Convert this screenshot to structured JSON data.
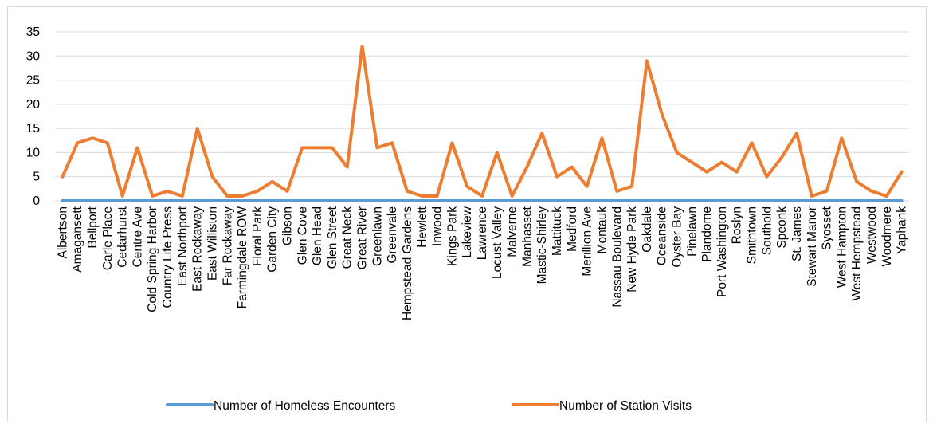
{
  "chart_data": {
    "type": "line",
    "title": "",
    "xlabel": "",
    "ylabel": "",
    "ylim": [
      0,
      35
    ],
    "yticks": [
      0,
      5,
      10,
      15,
      20,
      25,
      30,
      35
    ],
    "grid": true,
    "legend_position": "bottom",
    "categories": [
      "Albertson",
      "Amagansett",
      "Bellport",
      "Carle Place",
      "Cedarhurst",
      "Centre Ave",
      "Cold Spring Harbor",
      "Country Life Press",
      "East Northport",
      "East Rockaway",
      "East Williston",
      "Far Rockaway",
      "Farmingdale ROW",
      "Floral Park",
      "Garden City",
      "Gibson",
      "Glen Cove",
      "Glen Head",
      "Glen Street",
      "Great Neck",
      "Great River",
      "Greenlawn",
      "Greenvale",
      "Hempstead Gardens",
      "Hewlett",
      "Inwood",
      "Kings Park",
      "Lakeview",
      "Lawrence",
      "Locust Valley",
      "Malverne",
      "Manhasset",
      "Mastic-Shirley",
      "Mattituck",
      "Medford",
      "Merillion Ave",
      "Montauk",
      "Nassau Boulevard",
      "New Hyde Park",
      "Oakdale",
      "Oceanside",
      "Oyster Bay",
      "Pinelawn",
      "Plandome",
      "Port Washington",
      "Roslyn",
      "Smithtown",
      "Southold",
      "Speonk",
      "St. James",
      "Stewart Manor",
      "Syosset",
      "West Hampton",
      "West Hempstead",
      "Westwood",
      "Woodmere",
      "Yaphank"
    ],
    "series": [
      {
        "name": "Number of Homeless Encounters",
        "color": "#5b9bd5",
        "values": [
          0,
          0,
          0,
          0,
          0,
          0,
          0,
          0,
          0,
          0,
          0,
          0,
          0,
          0,
          0,
          0,
          0,
          0,
          0,
          0,
          0,
          0,
          0,
          0,
          0,
          0,
          0,
          0,
          0,
          0,
          0,
          0,
          0,
          0,
          0,
          0,
          0,
          0,
          0,
          0,
          0,
          0,
          0,
          0,
          0,
          0,
          0,
          0,
          0,
          0,
          0,
          0,
          0,
          0,
          0,
          0,
          0
        ]
      },
      {
        "name": "Number of Station Visits",
        "color": "#ed7d31",
        "values": [
          5,
          12,
          13,
          12,
          1,
          11,
          1,
          2,
          1,
          15,
          5,
          1,
          1,
          2,
          4,
          2,
          11,
          11,
          11,
          7,
          32,
          11,
          12,
          2,
          1,
          1,
          12,
          3,
          1,
          10,
          1,
          7,
          14,
          5,
          7,
          3,
          13,
          2,
          3,
          29,
          18,
          10,
          8,
          6,
          8,
          6,
          12,
          5,
          9,
          14,
          1,
          2,
          13,
          4,
          2,
          1,
          6
        ]
      }
    ]
  }
}
